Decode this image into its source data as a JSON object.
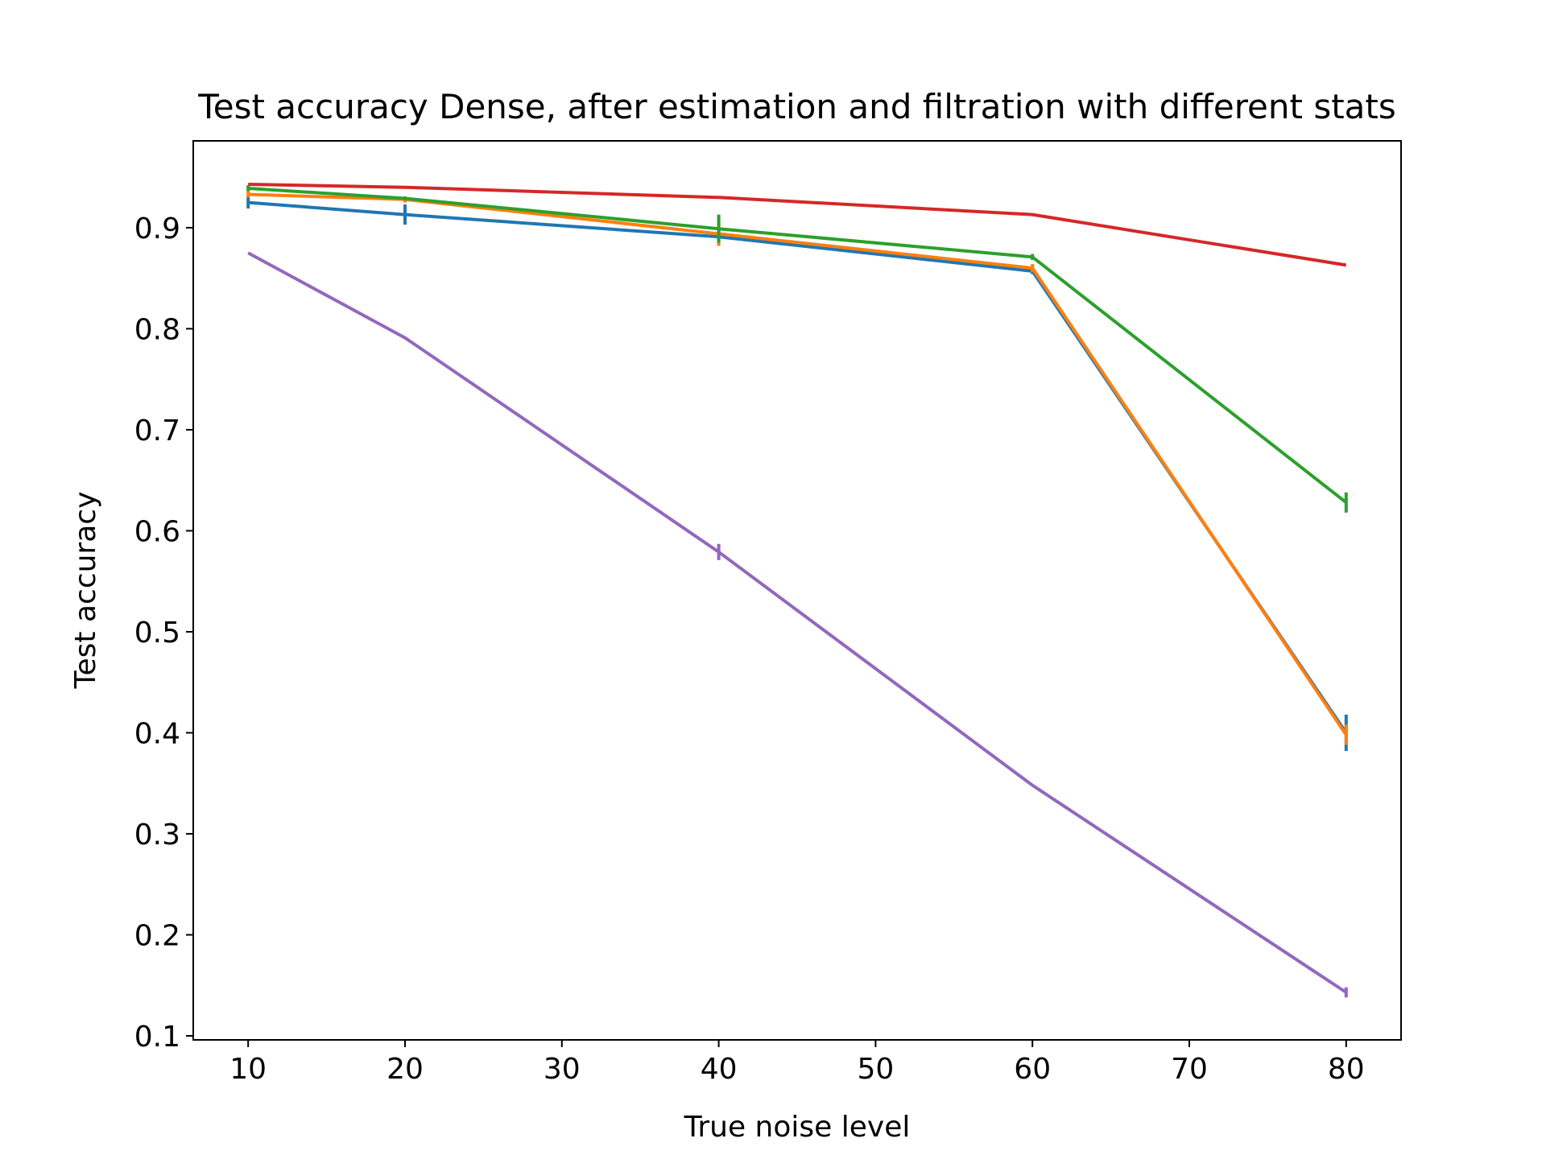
{
  "chart_data": {
    "type": "line",
    "title": "Test accuracy Dense, after estimation and filtration with different stats",
    "xlabel": "True noise level",
    "ylabel": "Test accuracy",
    "x": [
      10,
      20,
      40,
      60,
      80
    ],
    "xlim": [
      6.5,
      83.5
    ],
    "ylim": [
      0.096,
      0.986
    ],
    "xticks": [
      10,
      20,
      30,
      40,
      50,
      60,
      70,
      80
    ],
    "yticks": [
      0.1,
      0.2,
      0.3,
      0.4,
      0.5,
      0.6,
      0.7,
      0.8,
      0.9
    ],
    "xtick_labels": [
      "10",
      "20",
      "30",
      "40",
      "50",
      "60",
      "70",
      "80"
    ],
    "ytick_labels": [
      "0.1",
      "0.2",
      "0.3",
      "0.4",
      "0.5",
      "0.6",
      "0.7",
      "0.8",
      "0.9"
    ],
    "grid": false,
    "legend": "none",
    "series": [
      {
        "color": "#1f77b4",
        "values": [
          0.925,
          0.913,
          0.891,
          0.857,
          0.4
        ],
        "errors": [
          0.006,
          0.01,
          0.003,
          0.003,
          0.018
        ]
      },
      {
        "color": "#ff7f0e",
        "values": [
          0.933,
          0.928,
          0.894,
          0.86,
          0.398
        ],
        "errors": [
          0.003,
          0.003,
          0.012,
          0.004,
          0.01
        ]
      },
      {
        "color": "#2ca02c",
        "values": [
          0.939,
          0.929,
          0.899,
          0.871,
          0.628
        ],
        "errors": [
          0.003,
          0.002,
          0.014,
          0.003,
          0.01
        ]
      },
      {
        "color": "#d62728",
        "values": [
          0.943,
          0.94,
          0.93,
          0.913,
          0.863
        ],
        "errors": [
          0.0,
          0.0,
          0.0,
          0.0,
          0.0
        ]
      },
      {
        "color": "#9467bd",
        "values": [
          0.875,
          0.791,
          0.579,
          0.348,
          0.143
        ],
        "errors": [
          0.0,
          0.0,
          0.008,
          0.0,
          0.005
        ]
      }
    ]
  }
}
